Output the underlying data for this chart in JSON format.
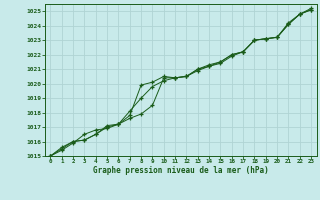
{
  "background_color": "#c8eaea",
  "grid_color": "#b0d4d4",
  "line_color": "#1a5c1a",
  "marker_color": "#1a5c1a",
  "xlabel": "Graphe pression niveau de la mer (hPa)",
  "ylim": [
    1015,
    1025.5
  ],
  "xlim": [
    -0.5,
    23.5
  ],
  "yticks": [
    1015,
    1016,
    1017,
    1018,
    1019,
    1020,
    1021,
    1022,
    1023,
    1024,
    1025
  ],
  "xticks": [
    0,
    1,
    2,
    3,
    4,
    5,
    6,
    7,
    8,
    9,
    10,
    11,
    12,
    13,
    14,
    15,
    16,
    17,
    18,
    19,
    20,
    21,
    22,
    23
  ],
  "series": [
    [
      1015.0,
      1015.6,
      1016.0,
      1016.1,
      1016.5,
      1017.0,
      1017.2,
      1017.8,
      1019.9,
      1020.1,
      1020.5,
      1020.4,
      1020.5,
      1021.0,
      1021.3,
      1021.5,
      1022.0,
      1022.2,
      1023.0,
      1023.1,
      1023.2,
      1024.1,
      1024.8,
      1025.1
    ],
    [
      1015.0,
      1015.5,
      1016.0,
      1016.1,
      1016.5,
      1017.1,
      1017.2,
      1018.1,
      1019.0,
      1019.8,
      1020.2,
      1020.4,
      1020.5,
      1021.0,
      1021.2,
      1021.4,
      1021.9,
      1022.2,
      1023.0,
      1023.1,
      1023.2,
      1024.1,
      1024.8,
      1025.1
    ],
    [
      1015.0,
      1015.4,
      1015.9,
      1016.5,
      1016.8,
      1016.9,
      1017.2,
      1017.6,
      1017.9,
      1018.5,
      1020.4,
      1020.4,
      1020.5,
      1020.9,
      1021.2,
      1021.5,
      1022.0,
      1022.2,
      1023.0,
      1023.1,
      1023.2,
      1024.2,
      1024.8,
      1025.2
    ]
  ]
}
